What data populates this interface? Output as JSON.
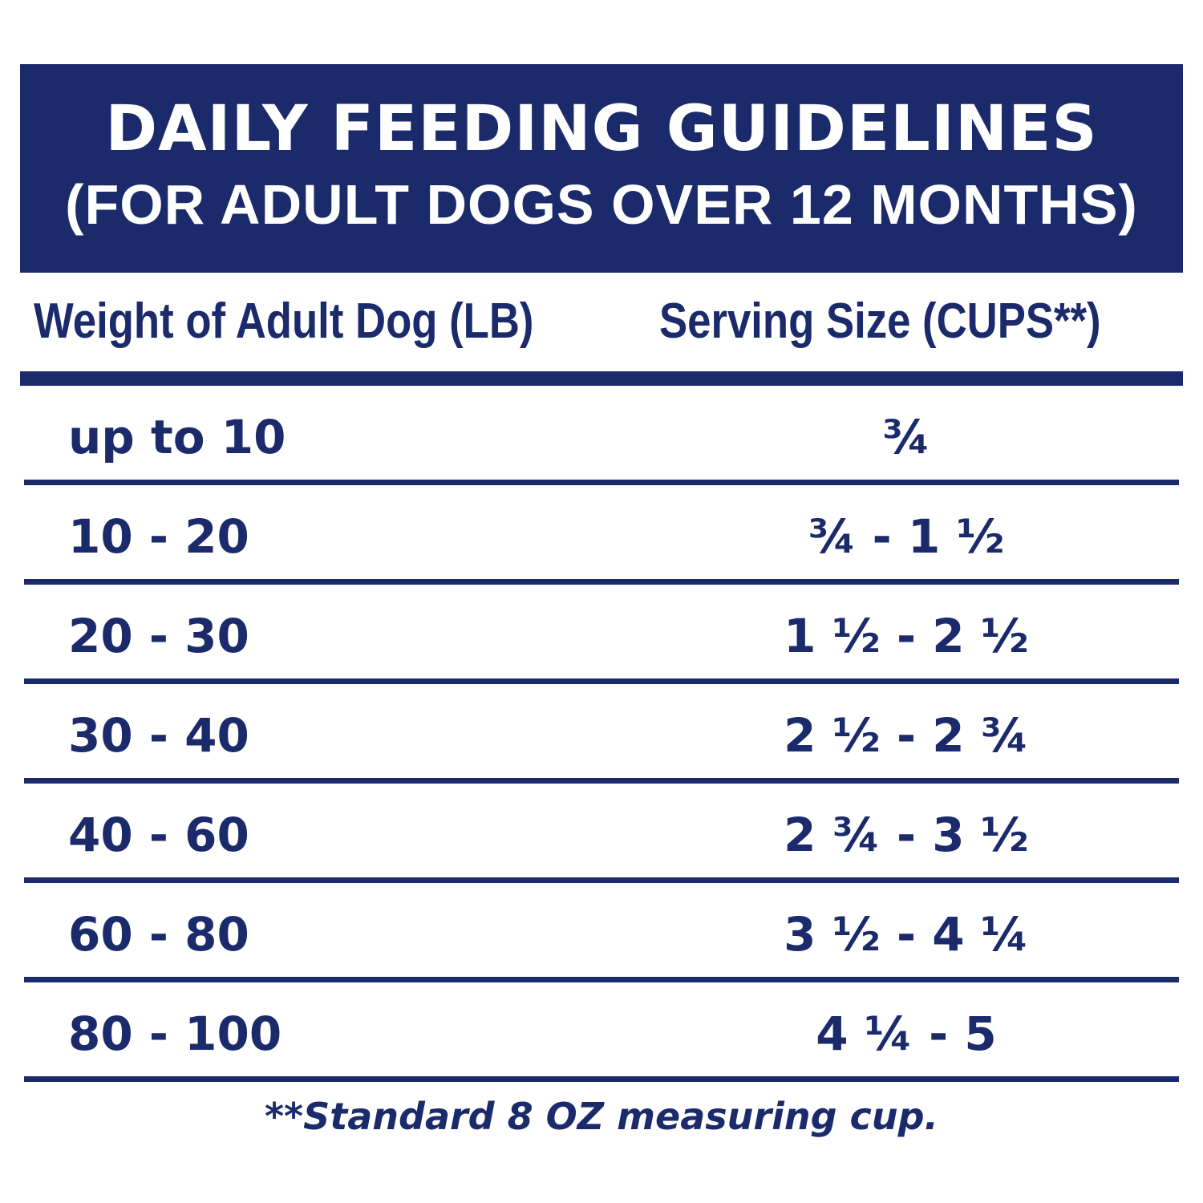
{
  "header": {
    "title": "DAILY FEEDING GUIDELINES",
    "subtitle": "(FOR ADULT DOGS OVER 12 MONTHS)"
  },
  "table": {
    "columns": [
      "Weight of Adult Dog (LB)",
      "Serving Size (CUPS**)"
    ],
    "rows": [
      [
        "up to 10",
        "¾"
      ],
      [
        "10 - 20",
        "¾ - 1 ½"
      ],
      [
        "20 - 30",
        "1 ½ - 2 ½"
      ],
      [
        "30 - 40",
        "2 ½ - 2 ¾"
      ],
      [
        "40 - 60",
        "2 ¾ - 3 ½"
      ],
      [
        "60 - 80",
        "3 ½ - 4 ¼"
      ],
      [
        "80 - 100",
        "4 ¼ - 5"
      ]
    ]
  },
  "footnote": "**Standard 8 OZ measuring cup."
}
